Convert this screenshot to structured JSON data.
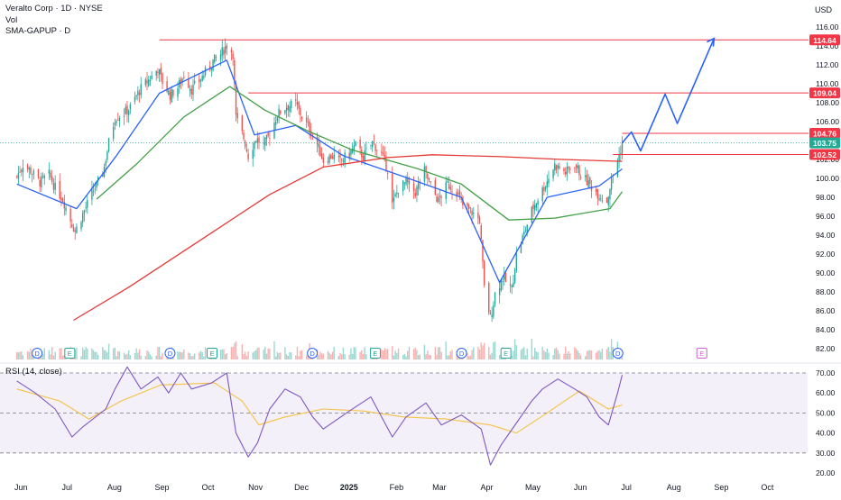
{
  "legend": {
    "symbol_line": "Veralto Corp · 1D · NYSE",
    "vol_label": "Vol",
    "indicator_label": "SMA-GAPUP · D",
    "rsi_label": "RSI (14, close)"
  },
  "price_axis": {
    "currency": "USD",
    "ticks": [
      "116.00",
      "114.00",
      "112.00",
      "110.00",
      "108.00",
      "106.00",
      "102.00",
      "100.00",
      "98.00",
      "96.00",
      "94.00",
      "92.00",
      "90.00",
      "88.00",
      "86.00",
      "84.00",
      "82.00"
    ],
    "range": [
      81,
      116.5
    ]
  },
  "rsi_axis": {
    "ticks": [
      "70.00",
      "60.00",
      "50.00",
      "40.00",
      "30.00",
      "20.00"
    ],
    "range": [
      18,
      75
    ],
    "band": [
      30,
      70
    ]
  },
  "price_labels": [
    {
      "text": "114.64",
      "value": 114.64,
      "bg": "#f23645"
    },
    {
      "text": "109.04",
      "value": 109.04,
      "bg": "#f23645"
    },
    {
      "text": "104.76",
      "value": 104.76,
      "bg": "#f23645"
    },
    {
      "text": "103.75",
      "value": 103.75,
      "bg": "#22ab94"
    },
    {
      "text": "102.52",
      "value": 102.52,
      "bg": "#f23645"
    }
  ],
  "time_axis": {
    "labels": [
      "Jun",
      "Jul",
      "Aug",
      "Sep",
      "Oct",
      "Nov",
      "Dec",
      "2025",
      "Feb",
      "Mar",
      "Apr",
      "May",
      "Jun",
      "Jul",
      "Aug",
      "Sep",
      "Oct"
    ],
    "bold_label": "2025"
  },
  "event_markers": [
    {
      "text": "D",
      "type": "dividend",
      "month_index": 0.5
    },
    {
      "text": "E",
      "type": "earnings",
      "month_index": 1.2
    },
    {
      "text": "D",
      "type": "dividend",
      "month_index": 3.35
    },
    {
      "text": "E",
      "type": "earnings",
      "month_index": 4.25
    },
    {
      "text": "D",
      "type": "dividend",
      "month_index": 6.4
    },
    {
      "text": "E",
      "type": "earnings",
      "month_index": 7.75
    },
    {
      "text": "D",
      "type": "dividend",
      "month_index": 9.6
    },
    {
      "text": "E",
      "type": "earnings",
      "month_index": 10.55
    },
    {
      "text": "D",
      "type": "dividend",
      "month_index": 12.95
    },
    {
      "text": "E",
      "type": "earnings-upcoming",
      "month_index": 14.75
    }
  ],
  "colors": {
    "up": "#26a69a",
    "down": "#ef5350",
    "sma_fast": "#2962ff",
    "sma_slow": "#43a047",
    "sma_long": "#e53935",
    "level_line": "#f23645",
    "projection": "#2962ff",
    "rsi_line": "#7e57c2",
    "rsi_ma": "#f5c242",
    "rsi_band": "#7e57c2"
  },
  "chart_data": [
    {
      "type": "candlestick",
      "title": "Veralto Corp · 1D · NYSE",
      "y_unit": "USD",
      "x_start": "2024-06-01",
      "x_end": "2025-10-31",
      "ylim": [
        81,
        116.5
      ],
      "close_path": [
        [
          "2024-06-03",
          100.2
        ],
        [
          "2024-06-07",
          101.5
        ],
        [
          "2024-06-12",
          100.8
        ],
        [
          "2024-06-18",
          99.6
        ],
        [
          "2024-06-24",
          100.4
        ],
        [
          "2024-06-28",
          99.0
        ],
        [
          "2024-07-03",
          97.8
        ],
        [
          "2024-07-08",
          95.6
        ],
        [
          "2024-07-11",
          94.4
        ],
        [
          "2024-07-16",
          96.2
        ],
        [
          "2024-07-22",
          98.4
        ],
        [
          "2024-07-26",
          99.6
        ],
        [
          "2024-07-30",
          101.2
        ],
        [
          "2024-08-02",
          103.8
        ],
        [
          "2024-08-06",
          106.4
        ],
        [
          "2024-08-12",
          106.9
        ],
        [
          "2024-08-16",
          107.5
        ],
        [
          "2024-08-22",
          109.3
        ],
        [
          "2024-08-28",
          110.4
        ],
        [
          "2024-09-03",
          111.6
        ],
        [
          "2024-09-06",
          110.2
        ],
        [
          "2024-09-11",
          108.8
        ],
        [
          "2024-09-16",
          109.6
        ],
        [
          "2024-09-20",
          110.9
        ],
        [
          "2024-09-25",
          109.4
        ],
        [
          "2024-09-30",
          110.3
        ],
        [
          "2024-10-04",
          111.2
        ],
        [
          "2024-10-09",
          112.4
        ],
        [
          "2024-10-14",
          113.1
        ],
        [
          "2024-10-18",
          114.1
        ],
        [
          "2024-10-22",
          113.2
        ],
        [
          "2024-10-24",
          106.4
        ],
        [
          "2024-10-29",
          104.3
        ],
        [
          "2024-11-01",
          102.4
        ],
        [
          "2024-11-06",
          104.2
        ],
        [
          "2024-11-11",
          103.5
        ],
        [
          "2024-11-15",
          104.6
        ],
        [
          "2024-11-20",
          106.8
        ],
        [
          "2024-11-26",
          107.6
        ],
        [
          "2024-12-02",
          107.9
        ],
        [
          "2024-12-06",
          106.5
        ],
        [
          "2024-12-11",
          105.2
        ],
        [
          "2024-12-16",
          103.6
        ],
        [
          "2024-12-20",
          101.9
        ],
        [
          "2024-12-26",
          102.4
        ],
        [
          "2024-12-31",
          101.8
        ],
        [
          "2025-01-06",
          102.6
        ],
        [
          "2025-01-10",
          103.5
        ],
        [
          "2025-01-15",
          102.3
        ],
        [
          "2025-01-21",
          103.8
        ],
        [
          "2025-01-27",
          102.5
        ],
        [
          "2025-01-31",
          101.0
        ],
        [
          "2025-02-03",
          97.2
        ],
        [
          "2025-02-07",
          98.9
        ],
        [
          "2025-02-12",
          99.6
        ],
        [
          "2025-02-18",
          98.5
        ],
        [
          "2025-02-24",
          100.8
        ],
        [
          "2025-02-28",
          99.2
        ],
        [
          "2025-03-05",
          97.6
        ],
        [
          "2025-03-11",
          99.4
        ],
        [
          "2025-03-17",
          98.6
        ],
        [
          "2025-03-21",
          97.1
        ],
        [
          "2025-03-27",
          96.4
        ],
        [
          "2025-04-01",
          95.6
        ],
        [
          "2025-04-04",
          88.4
        ],
        [
          "2025-04-08",
          85.2
        ],
        [
          "2025-04-11",
          87.8
        ],
        [
          "2025-04-16",
          89.5
        ],
        [
          "2025-04-22",
          88.3
        ],
        [
          "2025-04-25",
          91.9
        ],
        [
          "2025-04-30",
          94.2
        ],
        [
          "2025-05-05",
          96.6
        ],
        [
          "2025-05-09",
          97.9
        ],
        [
          "2025-05-14",
          99.4
        ],
        [
          "2025-05-20",
          101.4
        ],
        [
          "2025-05-27",
          100.6
        ],
        [
          "2025-06-02",
          101.5
        ],
        [
          "2025-06-06",
          100.4
        ],
        [
          "2025-06-12",
          99.3
        ],
        [
          "2025-06-17",
          98.4
        ],
        [
          "2025-06-23",
          97.6
        ],
        [
          "2025-06-26",
          99.8
        ],
        [
          "2025-06-30",
          101.9
        ],
        [
          "2025-07-02",
          103.0
        ],
        [
          "2025-07-03",
          103.75
        ]
      ],
      "volume_scale": [
        0,
        1
      ]
    },
    {
      "type": "line",
      "title": "SMA-GAPUP · D",
      "series": [
        {
          "name": "",
          "color": "#2962ff",
          "points": [
            [
              "2024-06-03",
              99.4
            ],
            [
              "2024-07-12",
              96.8
            ],
            [
              "2024-08-07",
              102.4
            ],
            [
              "2024-09-04",
              109.0
            ],
            [
              "2024-10-18",
              112.5
            ],
            [
              "2024-11-05",
              104.6
            ],
            [
              "2024-12-02",
              105.6
            ],
            [
              "2025-01-02",
              102.4
            ],
            [
              "2025-02-10",
              100.2
            ],
            [
              "2025-03-20",
              98.0
            ],
            [
              "2025-04-14",
              89.0
            ],
            [
              "2025-05-15",
              98.0
            ],
            [
              "2025-06-18",
              99.2
            ],
            [
              "2025-07-03",
              101.0
            ]
          ]
        },
        {
          "name": "",
          "color": "#43a047",
          "points": [
            [
              "2024-07-25",
              97.8
            ],
            [
              "2024-08-20",
              101.5
            ],
            [
              "2024-09-20",
              106.5
            ],
            [
              "2024-10-20",
              109.7
            ],
            [
              "2024-11-12",
              107.2
            ],
            [
              "2024-12-10",
              105.0
            ],
            [
              "2025-01-08",
              103.0
            ],
            [
              "2025-02-20",
              101.0
            ],
            [
              "2025-03-20",
              99.4
            ],
            [
              "2025-04-20",
              95.6
            ],
            [
              "2025-05-20",
              95.8
            ],
            [
              "2025-06-25",
              96.8
            ],
            [
              "2025-07-03",
              98.6
            ]
          ]
        },
        {
          "name": "",
          "color": "#e53935",
          "points": [
            [
              "2024-07-10",
              85.0
            ],
            [
              "2024-08-15",
              88.5
            ],
            [
              "2024-10-01",
              93.5
            ],
            [
              "2024-11-15",
              98.3
            ],
            [
              "2024-12-20",
              101.2
            ],
            [
              "2025-01-31",
              102.2
            ],
            [
              "2025-03-01",
              102.5
            ],
            [
              "2025-04-15",
              102.3
            ],
            [
              "2025-05-25",
              102.0
            ],
            [
              "2025-07-03",
              101.8
            ]
          ]
        }
      ]
    },
    {
      "type": "line",
      "title": "Projection",
      "series": [
        {
          "name": "",
          "color": "#2962ff",
          "points": [
            [
              "2025-07-03",
              103.75
            ],
            [
              "2025-07-09",
              104.9
            ],
            [
              "2025-07-15",
              102.9
            ],
            [
              "2025-07-31",
              108.9
            ],
            [
              "2025-08-08",
              105.8
            ],
            [
              "2025-09-01",
              114.8
            ]
          ]
        }
      ]
    },
    {
      "type": "line",
      "title": "RSI (14, close)",
      "ylim": [
        18,
        75
      ],
      "band": [
        30,
        70
      ],
      "series": [
        {
          "name": "",
          "color": "#7e57c2",
          "points": [
            [
              "2024-06-03",
              66
            ],
            [
              "2024-06-15",
              60
            ],
            [
              "2024-06-28",
              52
            ],
            [
              "2024-07-09",
              38
            ],
            [
              "2024-07-16",
              43
            ],
            [
              "2024-07-31",
              52
            ],
            [
              "2024-08-06",
              62
            ],
            [
              "2024-08-14",
              73
            ],
            [
              "2024-08-23",
              62
            ],
            [
              "2024-09-03",
              68
            ],
            [
              "2024-09-10",
              60
            ],
            [
              "2024-09-18",
              70
            ],
            [
              "2024-09-25",
              62
            ],
            [
              "2024-10-08",
              65
            ],
            [
              "2024-10-18",
              70
            ],
            [
              "2024-10-24",
              40
            ],
            [
              "2024-11-01",
              28
            ],
            [
              "2024-11-07",
              35
            ],
            [
              "2024-11-15",
              52
            ],
            [
              "2024-11-25",
              62
            ],
            [
              "2024-12-05",
              58
            ],
            [
              "2024-12-13",
              48
            ],
            [
              "2024-12-20",
              42
            ],
            [
              "2025-01-06",
              51
            ],
            [
              "2025-01-20",
              58
            ],
            [
              "2025-02-03",
              38
            ],
            [
              "2025-02-12",
              48
            ],
            [
              "2025-02-25",
              55
            ],
            [
              "2025-03-07",
              44
            ],
            [
              "2025-03-20",
              49
            ],
            [
              "2025-04-02",
              42
            ],
            [
              "2025-04-08",
              24
            ],
            [
              "2025-04-15",
              34
            ],
            [
              "2025-04-25",
              45
            ],
            [
              "2025-05-05",
              56
            ],
            [
              "2025-05-12",
              62
            ],
            [
              "2025-05-22",
              67
            ],
            [
              "2025-06-02",
              62
            ],
            [
              "2025-06-10",
              58
            ],
            [
              "2025-06-18",
              48
            ],
            [
              "2025-06-24",
              44
            ],
            [
              "2025-06-30",
              60
            ],
            [
              "2025-07-03",
              69
            ]
          ]
        },
        {
          "name": "",
          "color": "#f5c242",
          "points": [
            [
              "2024-06-03",
              62
            ],
            [
              "2024-07-01",
              56
            ],
            [
              "2024-07-20",
              47
            ],
            [
              "2024-08-10",
              56
            ],
            [
              "2024-09-05",
              64
            ],
            [
              "2024-10-10",
              65
            ],
            [
              "2024-10-28",
              56
            ],
            [
              "2024-11-08",
              44
            ],
            [
              "2024-11-25",
              48
            ],
            [
              "2024-12-20",
              52
            ],
            [
              "2025-01-15",
              51
            ],
            [
              "2025-02-10",
              48
            ],
            [
              "2025-03-10",
              47
            ],
            [
              "2025-04-08",
              44
            ],
            [
              "2025-04-25",
              40
            ],
            [
              "2025-05-15",
              50
            ],
            [
              "2025-06-05",
              61
            ],
            [
              "2025-06-24",
              52
            ],
            [
              "2025-07-03",
              54
            ]
          ]
        }
      ]
    }
  ]
}
